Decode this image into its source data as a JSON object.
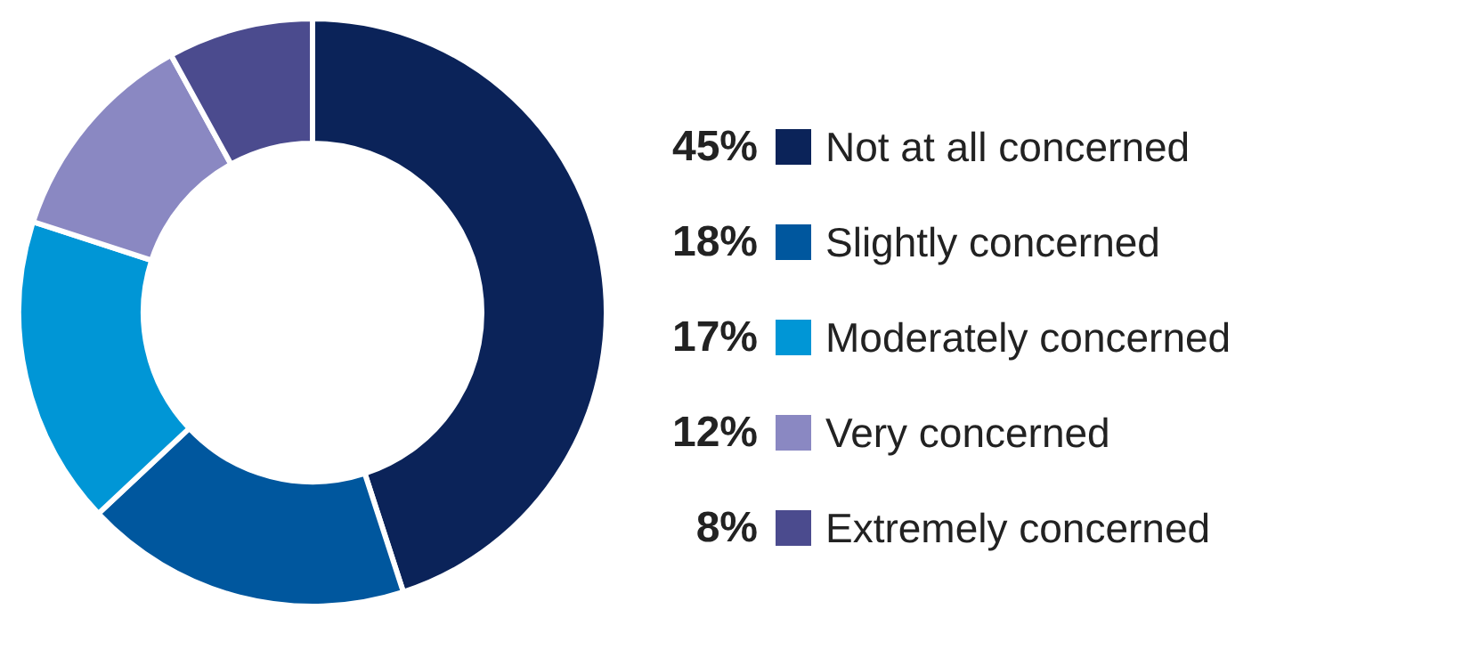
{
  "chart_data": {
    "type": "donut",
    "categories": [
      "Not at all concerned",
      "Slightly concerned",
      "Moderately concerned",
      "Very concerned",
      "Extremely concerned"
    ],
    "values": [
      45,
      18,
      17,
      12,
      8
    ],
    "colors": [
      "#0b2359",
      "#00579e",
      "#0096d6",
      "#8a88c2",
      "#4b4b8e"
    ],
    "value_labels": [
      "45%",
      "18%",
      "17%",
      "12%",
      "8%"
    ],
    "legend": "right"
  }
}
